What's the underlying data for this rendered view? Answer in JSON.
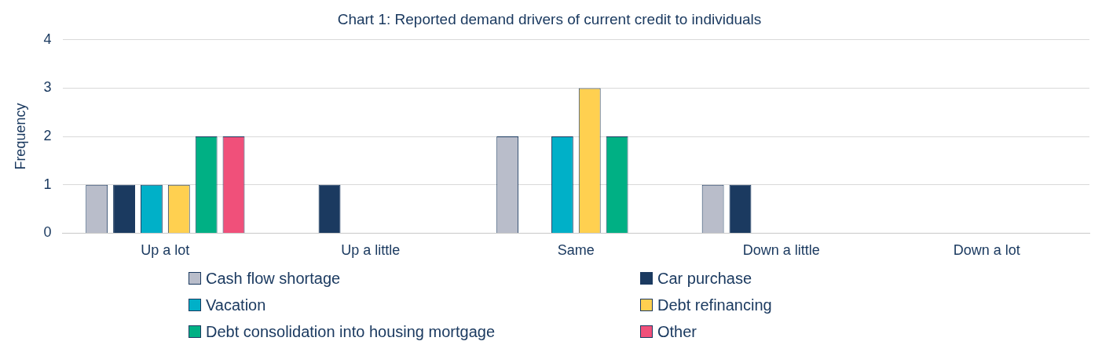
{
  "chart_data": {
    "type": "bar",
    "title": "Chart 1: Reported demand drivers of current credit to individuals",
    "ylabel": "Frequency",
    "categories": [
      "Up a lot",
      "Up a little",
      "Same",
      "Down a little",
      "Down a lot"
    ],
    "series": [
      {
        "name": "Cash flow shortage",
        "color": "#b9bdca",
        "values": [
          1,
          0,
          2,
          1,
          0
        ]
      },
      {
        "name": "Car purchase",
        "color": "#1b3a60",
        "values": [
          1,
          1,
          0,
          1,
          0
        ]
      },
      {
        "name": "Vacation",
        "color": "#00b0c8",
        "values": [
          1,
          0,
          2,
          0,
          0
        ]
      },
      {
        "name": "Debt refinancing",
        "color": "#ffd050",
        "values": [
          1,
          0,
          3,
          0,
          0
        ]
      },
      {
        "name": "Debt consolidation into housing mortgage",
        "color": "#00b084",
        "values": [
          2,
          0,
          2,
          0,
          0
        ]
      },
      {
        "name": "Other",
        "color": "#f0507a",
        "values": [
          2,
          0,
          0,
          0,
          0
        ]
      }
    ],
    "ylim": [
      0,
      4
    ],
    "yticks": [
      0,
      1,
      2,
      3,
      4
    ],
    "grid": "y",
    "legend": "bottom"
  }
}
